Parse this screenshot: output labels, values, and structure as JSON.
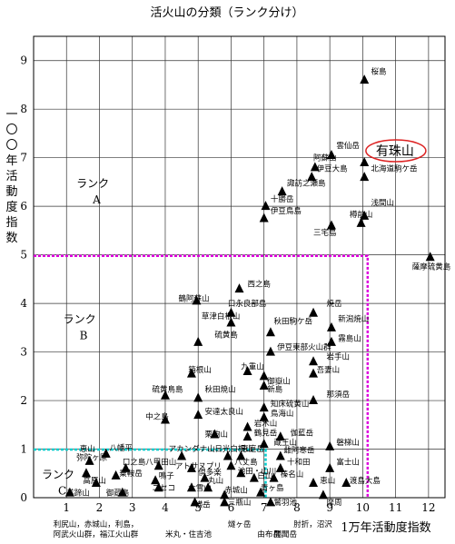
{
  "chart_data": {
    "type": "scatter",
    "title": "活火山の分類（ランク分け）",
    "xlabel": "1万年活動度指数",
    "ylabel": "一〇〇年活動度指数",
    "xlim": [
      0,
      12.5
    ],
    "ylim": [
      0,
      9.5
    ],
    "xticks": [
      "1",
      "2",
      "3",
      "4",
      "5",
      "6",
      "7",
      "8",
      "9",
      "10",
      "11",
      "12"
    ],
    "yticks": [
      "0",
      "1",
      "2",
      "3",
      "4",
      "5",
      "6",
      "7",
      "8",
      "9"
    ],
    "grid": true,
    "ranks": [
      {
        "name": "ランク A",
        "line1": "ランク",
        "line2": "A",
        "x": 1.3,
        "y": 6.4
      },
      {
        "name": "ランク B",
        "line1": "ランク",
        "line2": "B",
        "x": 0.9,
        "y": 3.6
      },
      {
        "name": "ランク C",
        "line1": "ランク",
        "line2": "C",
        "x": 0.25,
        "y": 0.4
      }
    ],
    "rank_boundaries": [
      {
        "name": "A/B",
        "x_max": 10.15,
        "y": 4.98,
        "color": "#dd00dd"
      },
      {
        "name": "B/C",
        "x_max": 7.05,
        "y": 0.99,
        "color": "#00cccc"
      }
    ],
    "highlight": {
      "label": "有珠山",
      "color": "#dd2222"
    },
    "points": [
      {
        "label": "桜島",
        "x": 10.05,
        "y": 8.6,
        "lx": 10.25,
        "ly": 8.72
      },
      {
        "label": "雲仙岳",
        "x": 9.05,
        "y": 7.05,
        "lx": 9.2,
        "ly": 7.2
      },
      {
        "label": "阿蘇山",
        "x": 8.55,
        "y": 6.8,
        "lx": 8.5,
        "ly": 6.95
      },
      {
        "label": "有珠山",
        "x": 10.05,
        "y": 6.9,
        "lx": 10.4,
        "ly": 7.05
      },
      {
        "label": "北海道駒ケ岳",
        "x": 10.05,
        "y": 6.6,
        "lx": 10.25,
        "ly": 6.72
      },
      {
        "label": "伊豆大島",
        "x": 8.45,
        "y": 6.6,
        "lx": 8.6,
        "ly": 6.72
      },
      {
        "label": "諏訪之瀬島",
        "x": 7.55,
        "y": 6.3,
        "lx": 7.7,
        "ly": 6.42
      },
      {
        "label": "十勝岳",
        "x": 7.05,
        "y": 6.0,
        "lx": 7.2,
        "ly": 6.1
      },
      {
        "label": "伊豆鳥島",
        "x": 7.0,
        "y": 5.75,
        "lx": 7.2,
        "ly": 5.85
      },
      {
        "label": "浅間山",
        "x": 10.05,
        "y": 5.8,
        "lx": 10.25,
        "ly": 6.02
      },
      {
        "label": "樽前山",
        "x": 9.95,
        "y": 5.65,
        "lx": 9.6,
        "ly": 5.78
      },
      {
        "label": "三宅島",
        "x": 9.05,
        "y": 5.6,
        "lx": 8.5,
        "ly": 5.4
      },
      {
        "label": "薩摩硫黄島",
        "x": 12.05,
        "y": 4.95,
        "lx": 11.5,
        "ly": 4.7
      },
      {
        "label": "西之島",
        "x": 6.25,
        "y": 4.3,
        "lx": 6.5,
        "ly": 4.35
      },
      {
        "label": "鶴阿蘇山",
        "x": 4.95,
        "y": 4.05,
        "lx": 4.4,
        "ly": 4.05
      },
      {
        "label": "口永良部島",
        "x": 6.0,
        "y": 3.8,
        "lx": 5.9,
        "ly": 3.95
      },
      {
        "label": "草津白根山",
        "x": 6.0,
        "y": 3.6,
        "lx": 5.1,
        "ly": 3.68
      },
      {
        "label": "焼岳",
        "x": 8.5,
        "y": 3.8,
        "lx": 8.9,
        "ly": 3.95
      },
      {
        "label": "新潟焼山",
        "x": 9.05,
        "y": 3.5,
        "lx": 9.25,
        "ly": 3.63
      },
      {
        "label": "秋田駒ケ岳",
        "x": 7.2,
        "y": 3.4,
        "lx": 7.3,
        "ly": 3.58
      },
      {
        "label": "硫黄島",
        "x": 5.0,
        "y": 3.2,
        "lx": 5.5,
        "ly": 3.3
      },
      {
        "label": "霧島山",
        "x": 9.05,
        "y": 3.2,
        "lx": 9.25,
        "ly": 3.23
      },
      {
        "label": "伊豆東部火山群",
        "x": 7.2,
        "y": 3.0,
        "lx": 7.4,
        "ly": 3.05
      },
      {
        "label": "岩手山",
        "x": 8.5,
        "y": 2.8,
        "lx": 8.9,
        "ly": 2.85
      },
      {
        "label": "九重山",
        "x": 6.5,
        "y": 2.6,
        "lx": 6.3,
        "ly": 2.65
      },
      {
        "label": "吾妻山",
        "x": 8.5,
        "y": 2.55,
        "lx": 8.6,
        "ly": 2.58
      },
      {
        "label": "御嶽山",
        "x": 7.0,
        "y": 2.5,
        "lx": 7.1,
        "ly": 2.35
      },
      {
        "label": "新島",
        "x": 7.0,
        "y": 2.3,
        "lx": 7.1,
        "ly": 2.18
      },
      {
        "label": "箱根山",
        "x": 4.8,
        "y": 2.55,
        "lx": 4.7,
        "ly": 2.58
      },
      {
        "label": "硫黄鳥島",
        "x": 4.0,
        "y": 2.1,
        "lx": 3.6,
        "ly": 2.18
      },
      {
        "label": "秋田焼山",
        "x": 5.0,
        "y": 2.05,
        "lx": 5.2,
        "ly": 2.18
      },
      {
        "label": "那須岳",
        "x": 8.5,
        "y": 2.0,
        "lx": 8.9,
        "ly": 2.08
      },
      {
        "label": "知床硫黄山",
        "x": 7.0,
        "y": 1.85,
        "lx": 7.2,
        "ly": 1.88
      },
      {
        "label": "安達太良山",
        "x": 5.0,
        "y": 1.7,
        "lx": 5.2,
        "ly": 1.72
      },
      {
        "label": "鳥海山",
        "x": 7.0,
        "y": 1.65,
        "lx": 7.2,
        "ly": 1.68
      },
      {
        "label": "中之島",
        "x": 4.0,
        "y": 1.6,
        "lx": 3.4,
        "ly": 1.62
      },
      {
        "label": "岩木山",
        "x": 6.5,
        "y": 1.45,
        "lx": 6.7,
        "ly": 1.48
      },
      {
        "label": "栗駒山",
        "x": 5.5,
        "y": 1.3,
        "lx": 5.2,
        "ly": 1.25
      },
      {
        "label": "鶴見岳",
        "x": 6.5,
        "y": 1.25,
        "lx": 6.7,
        "ly": 1.28
      },
      {
        "label": "伽藍岳",
        "x": 7.5,
        "y": 1.25,
        "lx": 7.8,
        "ly": 1.28
      },
      {
        "label": "磐梯山",
        "x": 9.0,
        "y": 1.05,
        "lx": 9.2,
        "ly": 1.08
      },
      {
        "label": "蔵王山",
        "x": 7.0,
        "y": 1.1,
        "lx": 7.3,
        "ly": 1.08
      },
      {
        "label": "恵山",
        "x": 1.6,
        "y": 0.5,
        "lx": 1.4,
        "ly": 0.95
      },
      {
        "label": "八幡平",
        "x": 2.2,
        "y": 0.9,
        "lx": 2.3,
        "ly": 0.97
      },
      {
        "label": "弥陀ヶ原",
        "x": 1.7,
        "y": 0.75,
        "lx": 1.3,
        "ly": 0.78
      },
      {
        "label": "アカンダナ山",
        "x": 4.5,
        "y": 0.85,
        "lx": 4.1,
        "ly": 0.95
      },
      {
        "label": "日光白根山",
        "x": 5.9,
        "y": 0.85,
        "lx": 5.5,
        "ly": 0.95
      },
      {
        "label": "恵庭岳",
        "x": 6.3,
        "y": 0.85,
        "lx": 6.3,
        "ly": 0.95
      },
      {
        "label": "雌阿寒岳",
        "x": 7.5,
        "y": 0.85,
        "lx": 7.6,
        "ly": 0.93
      },
      {
        "label": "十和田",
        "x": 7.5,
        "y": 0.6,
        "lx": 7.7,
        "ly": 0.68
      },
      {
        "label": "榛名山",
        "x": 7.3,
        "y": 0.4,
        "lx": 7.5,
        "ly": 0.43
      },
      {
        "label": "富士山",
        "x": 9.0,
        "y": 0.6,
        "lx": 9.2,
        "ly": 0.68
      },
      {
        "label": "渡島大島",
        "x": 9.5,
        "y": 0.3,
        "lx": 9.6,
        "ly": 0.3
      },
      {
        "label": "恵山",
        "x": 8.5,
        "y": 0.3,
        "lx": 8.7,
        "ly": 0.3
      },
      {
        "label": "摩周",
        "x": 8.8,
        "y": 0.05,
        "lx": 8.9,
        "ly": -0.15
      },
      {
        "label": "口之島",
        "x": 2.8,
        "y": 0.6,
        "lx": 2.7,
        "ly": 0.68
      },
      {
        "label": "八甲田山",
        "x": 3.8,
        "y": 0.65,
        "lx": 3.4,
        "ly": 0.68
      },
      {
        "label": "乗鞍岳",
        "x": 2.5,
        "y": 0.45,
        "lx": 2.6,
        "ly": 0.45
      },
      {
        "label": "鳴子",
        "x": 3.7,
        "y": 0.35,
        "lx": 3.8,
        "ly": 0.4
      },
      {
        "label": "アトサヌプリ",
        "x": 4.8,
        "y": 0.6,
        "lx": 4.3,
        "ly": 0.6
      },
      {
        "label": "倶多楽",
        "x": 5.2,
        "y": 0.4,
        "lx": 5.0,
        "ly": 0.47
      },
      {
        "label": "八丈島",
        "x": 6.0,
        "y": 0.65,
        "lx": 6.1,
        "ly": 0.68
      },
      {
        "label": "池田・山川",
        "x": 6.3,
        "y": 0.5,
        "lx": 6.2,
        "ly": 0.5
      },
      {
        "label": "白山",
        "x": 6.7,
        "y": 0.4,
        "lx": 6.8,
        "ly": 0.4
      },
      {
        "label": "青ヶ島",
        "x": 6.9,
        "y": 0.1,
        "lx": 6.9,
        "ly": 0.15
      },
      {
        "label": "丸山",
        "x": 5.3,
        "y": 0.2,
        "lx": 5.3,
        "ly": 0.3
      },
      {
        "label": "赤城山",
        "x": 5.8,
        "y": 0.05,
        "lx": 5.8,
        "ly": 0.1
      },
      {
        "label": "三瓶山",
        "x": 5.8,
        "y": -0.1,
        "lx": 5.9,
        "ly": -0.15
      },
      {
        "label": "ニセコ",
        "x": 3.8,
        "y": 0.2,
        "lx": 3.6,
        "ly": 0.15
      },
      {
        "label": "大雪山",
        "x": 4.8,
        "y": 0.2,
        "lx": 4.7,
        "ly": 0.15
      },
      {
        "label": "高原山",
        "x": 1.9,
        "y": 0.3,
        "lx": 1.5,
        "ly": 0.3
      },
      {
        "label": "羊蹄山",
        "x": 1.1,
        "y": 0.1,
        "lx": 1.0,
        "ly": 0.05
      },
      {
        "label": "御蔵島",
        "x": 2.7,
        "y": 0.1,
        "lx": 2.2,
        "ly": 0.05
      },
      {
        "label": "横岳",
        "x": 4.9,
        "y": -0.1,
        "lx": 4.9,
        "ly": -0.2
      },
      {
        "label": "鷲羽池",
        "x": 7.2,
        "y": -0.1,
        "lx": 7.3,
        "ly": -0.15
      }
    ],
    "bottom_labels": [
      {
        "text": "利尻山，赤城山，利島，",
        "x": 0.6,
        "y": -0.6
      },
      {
        "text": "阿武火山群，福江火山群",
        "x": 0.6,
        "y": -0.8
      },
      {
        "text": "米丸・住吉池",
        "x": 4.0,
        "y": -0.8
      },
      {
        "text": "燧ヶ岳",
        "x": 5.9,
        "y": -0.6
      },
      {
        "text": "由布岳，",
        "x": 6.8,
        "y": -0.8
      },
      {
        "text": "開聞岳",
        "x": 7.3,
        "y": -0.8
      },
      {
        "text": "肘折，沼沢",
        "x": 7.9,
        "y": -0.6
      }
    ]
  }
}
